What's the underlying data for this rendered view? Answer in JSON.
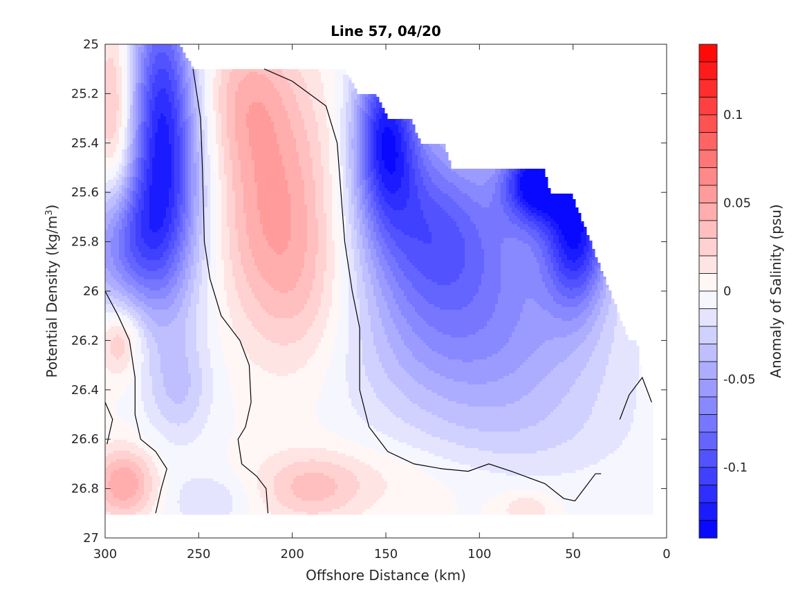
{
  "chart_data": {
    "type": "heatmap",
    "title": "Line 57, 04/20",
    "xlabel": "Offshore Distance (km)",
    "ylabel": "Potential Density (kg/m",
    "ylabel_sup": "3",
    "ylabel_end": ")",
    "colorbar_label": "Anomaly of Salinity (psu)",
    "x_axis": {
      "lim": [
        300,
        0
      ],
      "reversed": true,
      "ticks": [
        "300",
        "250",
        "200",
        "150",
        "100",
        "50",
        "0"
      ],
      "tick_values": [
        300,
        250,
        200,
        150,
        100,
        50,
        0
      ]
    },
    "y_axis": {
      "lim": [
        25,
        27
      ],
      "reversed": true,
      "ticks": [
        "25",
        "25.2",
        "25.4",
        "25.6",
        "25.8",
        "26",
        "26.2",
        "26.4",
        "26.6",
        "26.8",
        "27"
      ],
      "tick_values": [
        25,
        25.2,
        25.4,
        25.6,
        25.8,
        26,
        26.2,
        26.4,
        26.6,
        26.8,
        27
      ]
    },
    "colorbar": {
      "lim": [
        -0.14,
        0.14
      ],
      "levels": 28,
      "ticks": [
        "0.1",
        "0.05",
        "0",
        "-0.05",
        "-0.1"
      ],
      "tick_values": [
        0.1,
        0.05,
        0,
        -0.05,
        -0.1
      ]
    },
    "colors": {
      "positive": "#ff0000",
      "negative": "#0000ff",
      "neutral": "#ffffff",
      "contour": "#000000"
    },
    "data_domain": {
      "boundary": [
        [
          300,
          25
        ],
        [
          260,
          25
        ],
        [
          253,
          25.1
        ],
        [
          172,
          25.1
        ],
        [
          165,
          25.2
        ],
        [
          155,
          25.2
        ],
        [
          149,
          25.3
        ],
        [
          137,
          25.3
        ],
        [
          131,
          25.4
        ],
        [
          119,
          25.4
        ],
        [
          115,
          25.5
        ],
        [
          66,
          25.5
        ],
        [
          62,
          25.6
        ],
        [
          51,
          25.6
        ],
        [
          20,
          26.2
        ],
        [
          16,
          26.2
        ],
        [
          12,
          26.4
        ],
        [
          8,
          26.45
        ],
        [
          8,
          26.9
        ],
        [
          300,
          26.9
        ]
      ]
    },
    "features": [
      {
        "x": 270,
        "y": 25.35,
        "value": -0.11,
        "sx": 12,
        "sy": 0.45
      },
      {
        "x": 290,
        "y": 25.8,
        "value": -0.07,
        "sx": 16,
        "sy": 0.2
      },
      {
        "x": 255,
        "y": 25.6,
        "value": -0.03,
        "sx": 14,
        "sy": 0.4
      },
      {
        "x": 295,
        "y": 25.3,
        "value": 0.04,
        "sx": 7,
        "sy": 0.3
      },
      {
        "x": 210,
        "y": 25.65,
        "value": 0.05,
        "sx": 24,
        "sy": 0.35
      },
      {
        "x": 225,
        "y": 25.2,
        "value": 0.03,
        "sx": 18,
        "sy": 0.2
      },
      {
        "x": 195,
        "y": 26.05,
        "value": 0.015,
        "sx": 18,
        "sy": 0.25
      },
      {
        "x": 150,
        "y": 25.35,
        "value": -0.11,
        "sx": 12,
        "sy": 0.25
      },
      {
        "x": 130,
        "y": 25.75,
        "value": -0.07,
        "sx": 25,
        "sy": 0.3
      },
      {
        "x": 70,
        "y": 25.55,
        "value": -0.12,
        "sx": 12,
        "sy": 0.12
      },
      {
        "x": 48,
        "y": 25.75,
        "value": -0.11,
        "sx": 12,
        "sy": 0.22
      },
      {
        "x": 90,
        "y": 25.9,
        "value": -0.05,
        "sx": 35,
        "sy": 0.3
      },
      {
        "x": 100,
        "y": 26.3,
        "value": -0.03,
        "sx": 50,
        "sy": 0.2
      },
      {
        "x": 80,
        "y": 26.6,
        "value": -0.015,
        "sx": 45,
        "sy": 0.15
      },
      {
        "x": 290,
        "y": 26.78,
        "value": 0.05,
        "sx": 12,
        "sy": 0.1
      },
      {
        "x": 292,
        "y": 26.2,
        "value": 0.035,
        "sx": 8,
        "sy": 0.1
      },
      {
        "x": 260,
        "y": 26.4,
        "value": -0.025,
        "sx": 12,
        "sy": 0.15
      },
      {
        "x": 245,
        "y": 26.85,
        "value": -0.02,
        "sx": 15,
        "sy": 0.08
      },
      {
        "x": 190,
        "y": 26.8,
        "value": 0.03,
        "sx": 20,
        "sy": 0.1
      },
      {
        "x": 150,
        "y": 26.75,
        "value": 0.01,
        "sx": 40,
        "sy": 0.1
      },
      {
        "x": 75,
        "y": 26.88,
        "value": 0.02,
        "sx": 10,
        "sy": 0.05
      }
    ],
    "zero_contours": [
      [
        [
          253,
          25.1
        ],
        [
          249,
          25.3
        ],
        [
          248,
          25.5
        ],
        [
          247,
          25.8
        ],
        [
          244,
          25.95
        ],
        [
          238,
          26.1
        ],
        [
          228,
          26.2
        ],
        [
          223,
          26.3
        ],
        [
          222,
          26.45
        ],
        [
          225,
          26.55
        ],
        [
          229,
          26.6
        ],
        [
          227,
          26.7
        ],
        [
          219,
          26.75
        ],
        [
          214,
          26.8
        ],
        [
          213,
          26.9
        ]
      ],
      [
        [
          215,
          25.1
        ],
        [
          200,
          25.15
        ],
        [
          182,
          25.25
        ],
        [
          176,
          25.4
        ],
        [
          174,
          25.6
        ],
        [
          172,
          25.8
        ],
        [
          168,
          26.0
        ],
        [
          164,
          26.15
        ],
        [
          164,
          26.4
        ],
        [
          159,
          26.55
        ],
        [
          149,
          26.65
        ],
        [
          135,
          26.7
        ],
        [
          120,
          26.72
        ],
        [
          106,
          26.73
        ],
        [
          95,
          26.7
        ],
        [
          83,
          26.73
        ],
        [
          65,
          26.78
        ],
        [
          55,
          26.84
        ],
        [
          49,
          26.85
        ],
        [
          44,
          26.8
        ],
        [
          38,
          26.74
        ],
        [
          35,
          26.74
        ]
      ],
      [
        [
          300,
          26.0
        ],
        [
          293,
          26.1
        ],
        [
          287,
          26.2
        ],
        [
          284,
          26.35
        ],
        [
          284,
          26.5
        ],
        [
          281,
          26.6
        ],
        [
          273,
          26.65
        ],
        [
          267,
          26.72
        ],
        [
          270,
          26.8
        ],
        [
          273,
          26.9
        ]
      ],
      [
        [
          300,
          26.45
        ],
        [
          296,
          26.52
        ],
        [
          299,
          26.62
        ]
      ],
      [
        [
          25,
          26.52
        ],
        [
          20,
          26.42
        ],
        [
          13,
          26.35
        ],
        [
          8,
          26.45
        ]
      ]
    ]
  }
}
